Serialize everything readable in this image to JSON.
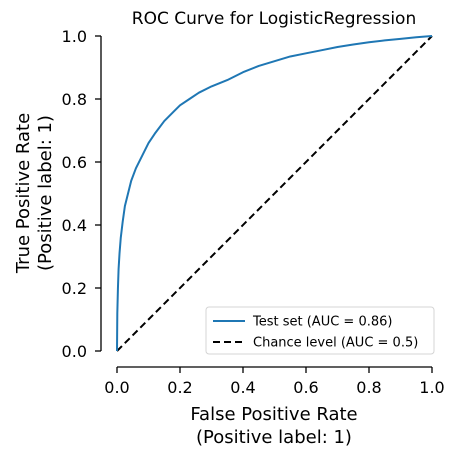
{
  "chart_data": {
    "type": "line",
    "title": "ROC Curve for LogisticRegression",
    "xlabel_line1": "False Positive Rate",
    "xlabel_line2": "(Positive label: 1)",
    "ylabel_line1": "True Positive Rate",
    "ylabel_line2": "(Positive label: 1)",
    "xlim": [
      0,
      1
    ],
    "ylim": [
      0,
      1
    ],
    "xticks": [
      "0.0",
      "0.2",
      "0.4",
      "0.6",
      "0.8",
      "1.0"
    ],
    "yticks": [
      "0.0",
      "0.2",
      "0.4",
      "0.6",
      "0.8",
      "1.0"
    ],
    "grid": false,
    "legend_position": "lower-right",
    "series": [
      {
        "name": "Test set (AUC = 0.86)",
        "color": "#1f77b4",
        "style": "solid",
        "x": [
          0,
          0.001,
          0.003,
          0.005,
          0.008,
          0.012,
          0.018,
          0.025,
          0.035,
          0.045,
          0.06,
          0.08,
          0.1,
          0.12,
          0.15,
          0.18,
          0.2,
          0.23,
          0.26,
          0.3,
          0.35,
          0.4,
          0.45,
          0.5,
          0.55,
          0.6,
          0.65,
          0.7,
          0.75,
          0.8,
          0.85,
          0.9,
          0.95,
          1.0
        ],
        "y": [
          0,
          0.12,
          0.2,
          0.26,
          0.31,
          0.36,
          0.41,
          0.46,
          0.5,
          0.54,
          0.58,
          0.62,
          0.66,
          0.69,
          0.73,
          0.76,
          0.78,
          0.8,
          0.82,
          0.84,
          0.86,
          0.885,
          0.905,
          0.92,
          0.935,
          0.945,
          0.955,
          0.965,
          0.973,
          0.98,
          0.986,
          0.991,
          0.996,
          1.0
        ]
      },
      {
        "name": "Chance level (AUC = 0.5)",
        "color": "#000000",
        "style": "dashed",
        "x": [
          0,
          1
        ],
        "y": [
          0,
          1
        ]
      }
    ]
  }
}
